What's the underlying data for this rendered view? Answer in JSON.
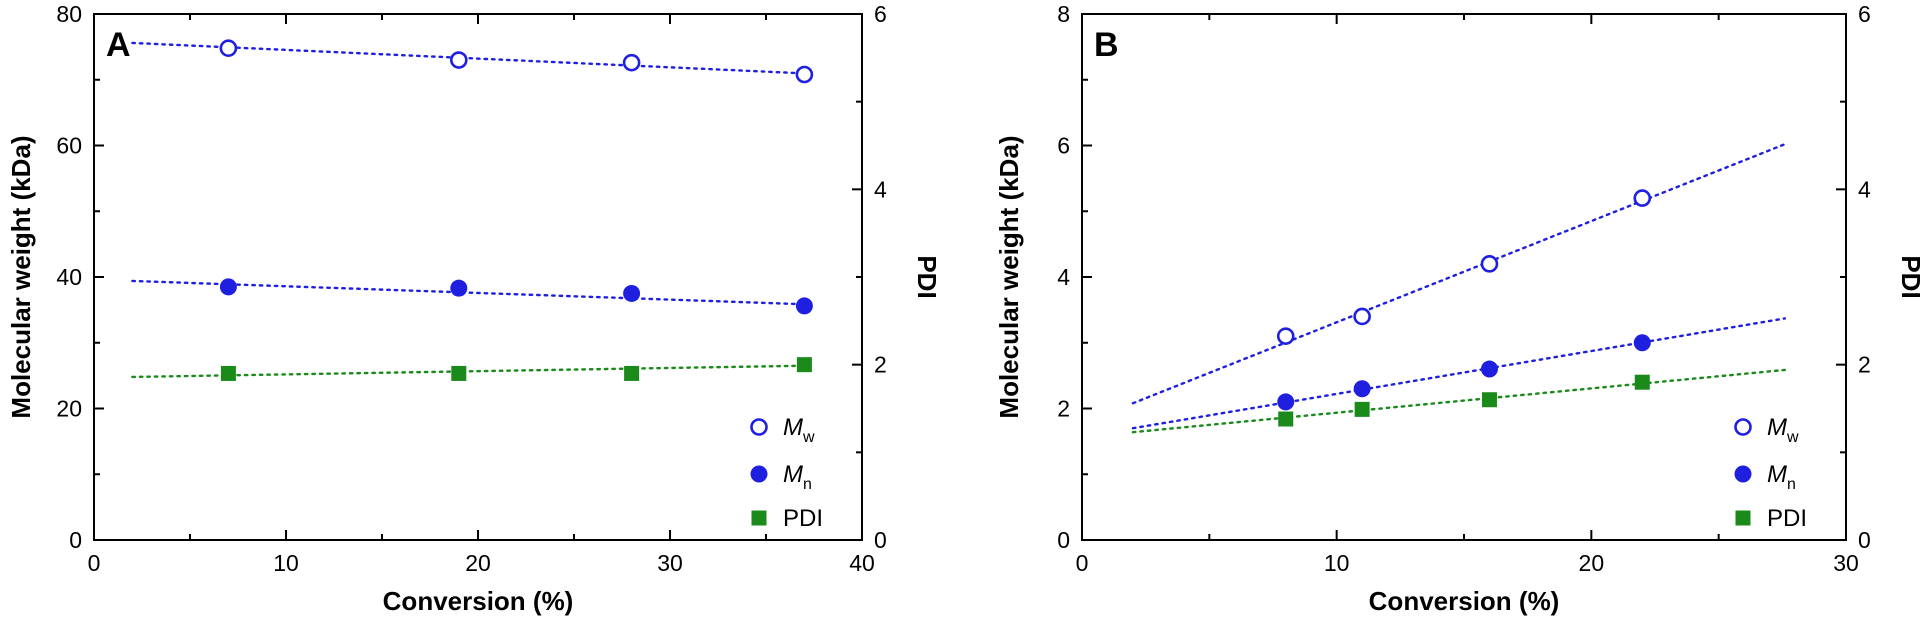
{
  "colors": {
    "mw": "#1f1fe0",
    "mn": "#1f1fe0",
    "pdi": "#1a8a1a",
    "axis": "#000000"
  },
  "chart_data": [
    {
      "type": "scatter",
      "panel": "A",
      "xlabel": "Conversion (%)",
      "ylabel": "Molecular weight (kDa)",
      "y2label": "PDI",
      "xlim": [
        0,
        40
      ],
      "ylim": [
        0,
        80
      ],
      "y2lim": [
        0,
        6
      ],
      "xticks": [
        0,
        10,
        20,
        30,
        40
      ],
      "yticks": [
        0,
        20,
        40,
        60,
        80
      ],
      "y2ticks": [
        0,
        2,
        4,
        6
      ],
      "legend": {
        "position": "bottom-right"
      },
      "series": [
        {
          "name": "Mw",
          "label_main": "M",
          "label_sub": "w",
          "marker": "open-circle",
          "axis": "left",
          "x": [
            7,
            19,
            28,
            37
          ],
          "y": [
            74.8,
            73.0,
            72.6,
            70.8
          ],
          "fit": {
            "x": [
              2,
              37.5
            ],
            "y": [
              75.6,
              70.9
            ]
          }
        },
        {
          "name": "Mn",
          "label_main": "M",
          "label_sub": "n",
          "marker": "filled-circle",
          "axis": "left",
          "x": [
            7,
            19,
            28,
            37
          ],
          "y": [
            38.5,
            38.3,
            37.5,
            35.6
          ],
          "fit": {
            "x": [
              2,
              37.5
            ],
            "y": [
              39.4,
              35.8
            ]
          }
        },
        {
          "name": "PDI",
          "label_main": "PDI",
          "label_sub": "",
          "marker": "filled-square",
          "axis": "right",
          "x": [
            7,
            19,
            28,
            37
          ],
          "y": [
            1.9,
            1.9,
            1.9,
            2.0
          ],
          "fit": {
            "x": [
              2,
              37.5
            ],
            "y": [
              1.86,
              1.99
            ]
          }
        }
      ]
    },
    {
      "type": "scatter",
      "panel": "B",
      "xlabel": "Conversion (%)",
      "ylabel": "Molecular weight (kDa)",
      "y2label": "PDI",
      "xlim": [
        0,
        30
      ],
      "ylim": [
        0,
        8
      ],
      "y2lim": [
        0,
        6
      ],
      "xticks": [
        0,
        10,
        20,
        30
      ],
      "yticks": [
        0,
        2,
        4,
        6,
        8
      ],
      "y2ticks": [
        0,
        2,
        4,
        6
      ],
      "legend": {
        "position": "bottom-right"
      },
      "series": [
        {
          "name": "Mw",
          "label_main": "M",
          "label_sub": "w",
          "marker": "open-circle",
          "axis": "left",
          "x": [
            8,
            11,
            16,
            22
          ],
          "y": [
            3.1,
            3.4,
            4.2,
            5.2
          ],
          "fit": {
            "x": [
              2,
              27.6
            ],
            "y": [
              2.08,
              6.02
            ]
          }
        },
        {
          "name": "Mn",
          "label_main": "M",
          "label_sub": "n",
          "marker": "filled-circle",
          "axis": "left",
          "x": [
            8,
            11,
            16,
            22
          ],
          "y": [
            2.1,
            2.3,
            2.6,
            3.0
          ],
          "fit": {
            "x": [
              2,
              27.6
            ],
            "y": [
              1.7,
              3.37
            ]
          }
        },
        {
          "name": "PDI",
          "label_main": "PDI",
          "label_sub": "",
          "marker": "filled-square",
          "axis": "right",
          "x": [
            8,
            11,
            16,
            22
          ],
          "y": [
            1.38,
            1.49,
            1.6,
            1.8
          ],
          "fit": {
            "x": [
              2,
              27.6
            ],
            "y": [
              1.23,
              1.94
            ]
          }
        }
      ]
    }
  ]
}
